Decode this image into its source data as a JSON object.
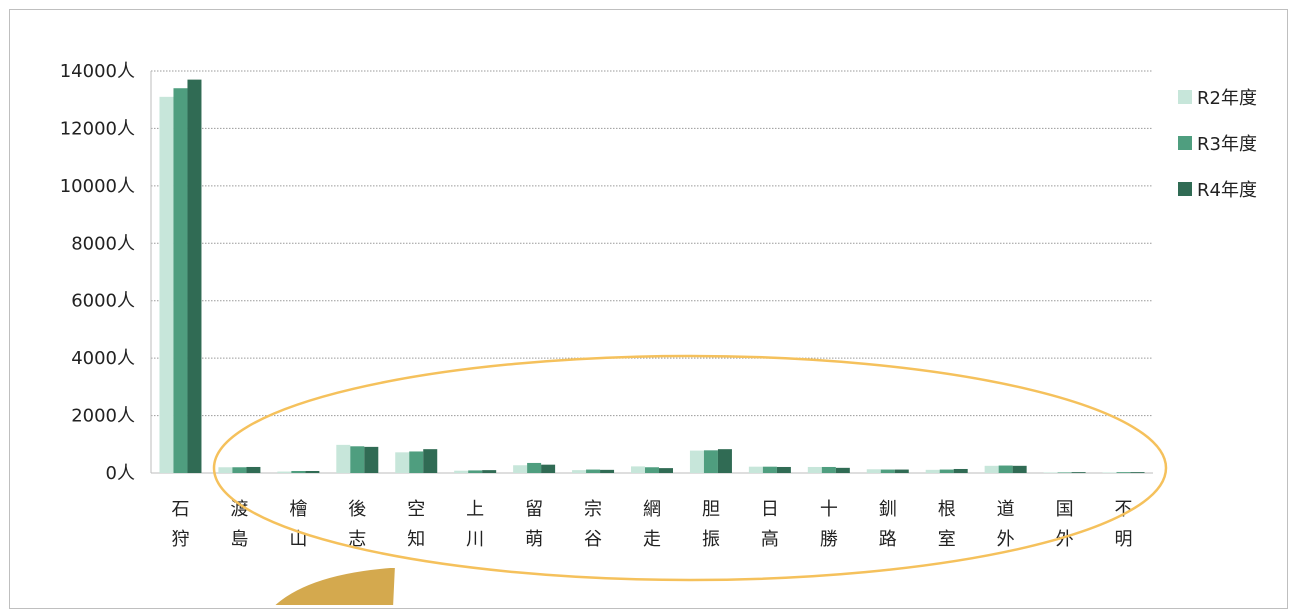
{
  "chart_data": {
    "type": "bar",
    "categories": [
      "石狩",
      "渡島",
      "檜山",
      "後志",
      "空知",
      "上川",
      "留萌",
      "宗谷",
      "網走",
      "胆振",
      "日高",
      "十勝",
      "釧路",
      "根室",
      "道外",
      "国外",
      "不明"
    ],
    "category_lines": [
      [
        "石",
        "狩"
      ],
      [
        "渡",
        "島"
      ],
      [
        "檜",
        "山"
      ],
      [
        "後",
        "志"
      ],
      [
        "空",
        "知"
      ],
      [
        "上",
        "川"
      ],
      [
        "留",
        "萌"
      ],
      [
        "宗",
        "谷"
      ],
      [
        "網",
        "走"
      ],
      [
        "胆",
        "振"
      ],
      [
        "日",
        "高"
      ],
      [
        "十",
        "勝"
      ],
      [
        "釧",
        "路"
      ],
      [
        "根",
        "室"
      ],
      [
        "道",
        "外"
      ],
      [
        "国",
        "外"
      ],
      [
        "不",
        "明"
      ]
    ],
    "series": [
      {
        "name": "R2年度",
        "color": "#c7e6da",
        "values": [
          13100,
          200,
          50,
          980,
          720,
          80,
          270,
          100,
          230,
          780,
          220,
          210,
          130,
          110,
          250,
          20,
          20
        ]
      },
      {
        "name": "R3年度",
        "color": "#4f9e7f",
        "values": [
          13400,
          200,
          70,
          930,
          750,
          90,
          350,
          120,
          200,
          790,
          220,
          210,
          120,
          120,
          260,
          20,
          30
        ]
      },
      {
        "name": "R4年度",
        "color": "#306b54",
        "values": [
          13700,
          210,
          70,
          910,
          830,
          100,
          290,
          110,
          170,
          830,
          210,
          180,
          120,
          140,
          250,
          30,
          30
        ]
      }
    ],
    "y_ticks": [
      0,
      2000,
      4000,
      6000,
      8000,
      10000,
      12000,
      14000
    ],
    "y_tick_labels": [
      "0人",
      "2000人",
      "4000人",
      "6000人",
      "8000人",
      "10000人",
      "12000人",
      "14000人"
    ],
    "ylim": [
      0,
      14000
    ],
    "grid": true,
    "legend_position": "right"
  },
  "overlay": {
    "highlight_ellipse_color": "#f5c15c",
    "arrow_color": "#d4a94e"
  }
}
